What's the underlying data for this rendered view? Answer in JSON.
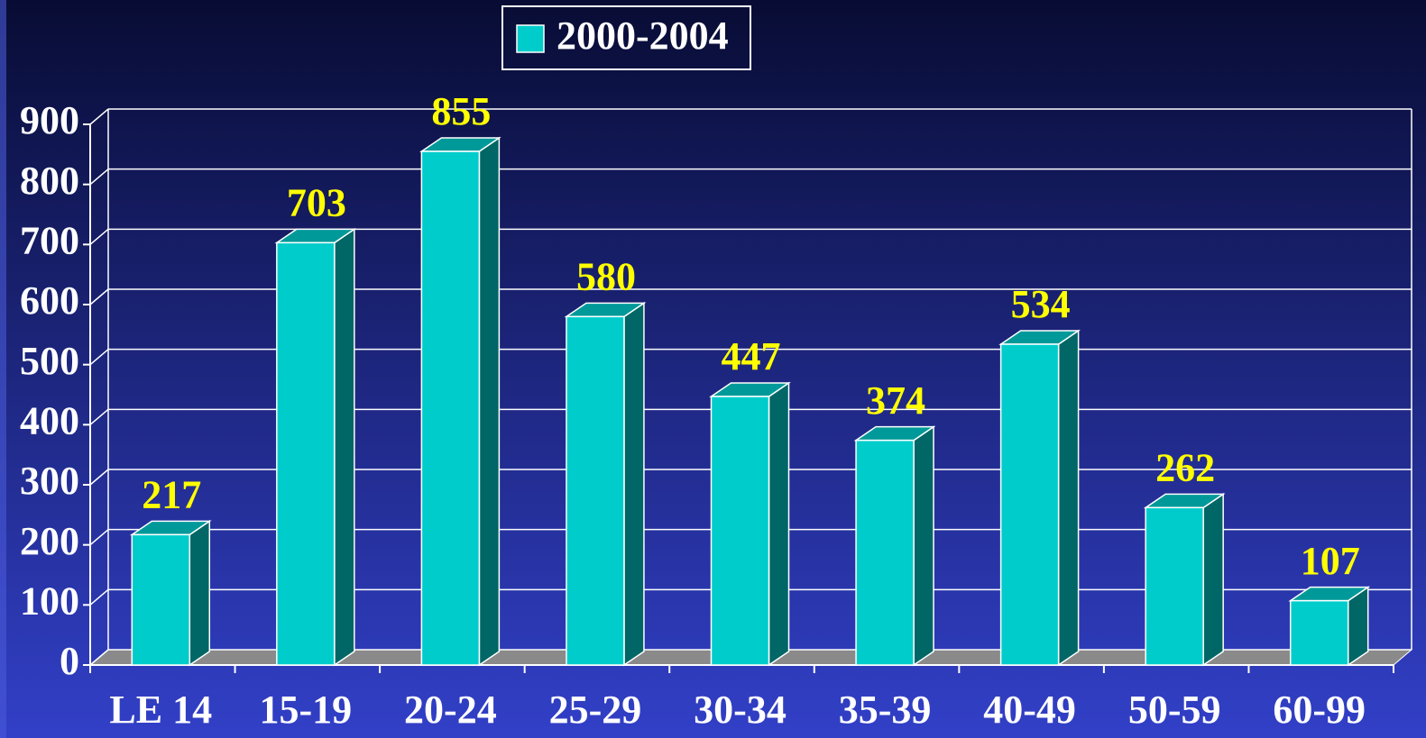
{
  "chart_data": {
    "type": "bar3d",
    "categories": [
      "LE 14",
      "15-19",
      "20-24",
      "25-29",
      "30-34",
      "35-39",
      "40-49",
      "50-59",
      "60-99"
    ],
    "series": [
      {
        "name": "2000-2004",
        "color": "#00cccc",
        "values": [
          217,
          703,
          855,
          580,
          447,
          374,
          534,
          262,
          107
        ]
      }
    ],
    "ylim": [
      0,
      900
    ],
    "yticks": [
      0,
      100,
      200,
      300,
      400,
      500,
      600,
      700,
      800,
      900
    ],
    "grid": true,
    "legend": "top"
  }
}
